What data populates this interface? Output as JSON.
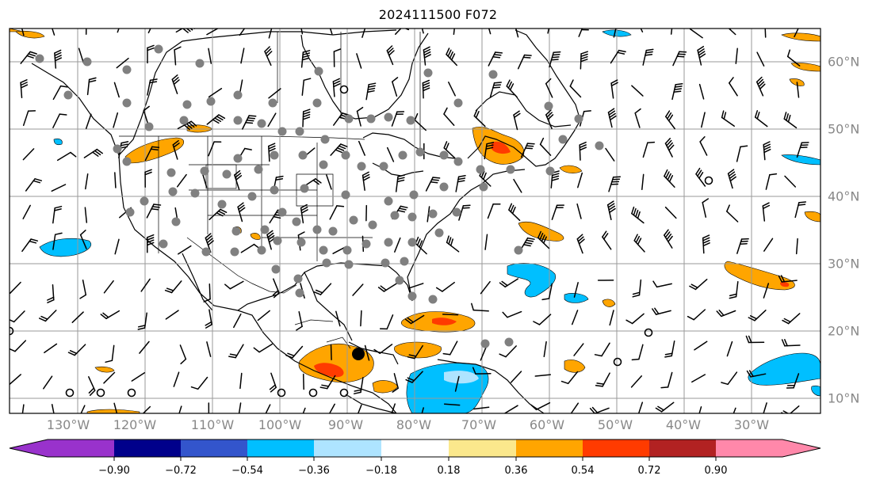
{
  "title": "2024111500 F072",
  "lon_labels": [
    "130°W",
    "120°W",
    "110°W",
    "100°W",
    "90°W",
    "80°W",
    "70°W",
    "60°W",
    "50°W",
    "40°W",
    "30°W"
  ],
  "lat_labels": [
    "60°N",
    "50°N",
    "40°N",
    "30°N",
    "20°N",
    "10°N"
  ],
  "colorbar": {
    "tick_labels": [
      "−0.90",
      "−0.72",
      "−0.54",
      "−0.36",
      "−0.18",
      "0.18",
      "0.36",
      "0.54",
      "0.72",
      "0.90"
    ],
    "colors": [
      "#9932cc",
      "#00008b",
      "#3355cc",
      "#00bfff",
      "#aee4ff",
      "#ffffff",
      "#fbe88c",
      "#ffa500",
      "#ff3b00",
      "#b22222",
      "#ff88aa"
    ]
  },
  "map": {
    "projection": "PlateCarree",
    "lon_range": [
      -140,
      -20
    ],
    "lat_range": [
      8,
      65
    ],
    "gridlines": true,
    "fields": [
      "filled contours",
      "wind barbs",
      "station markers"
    ]
  }
}
